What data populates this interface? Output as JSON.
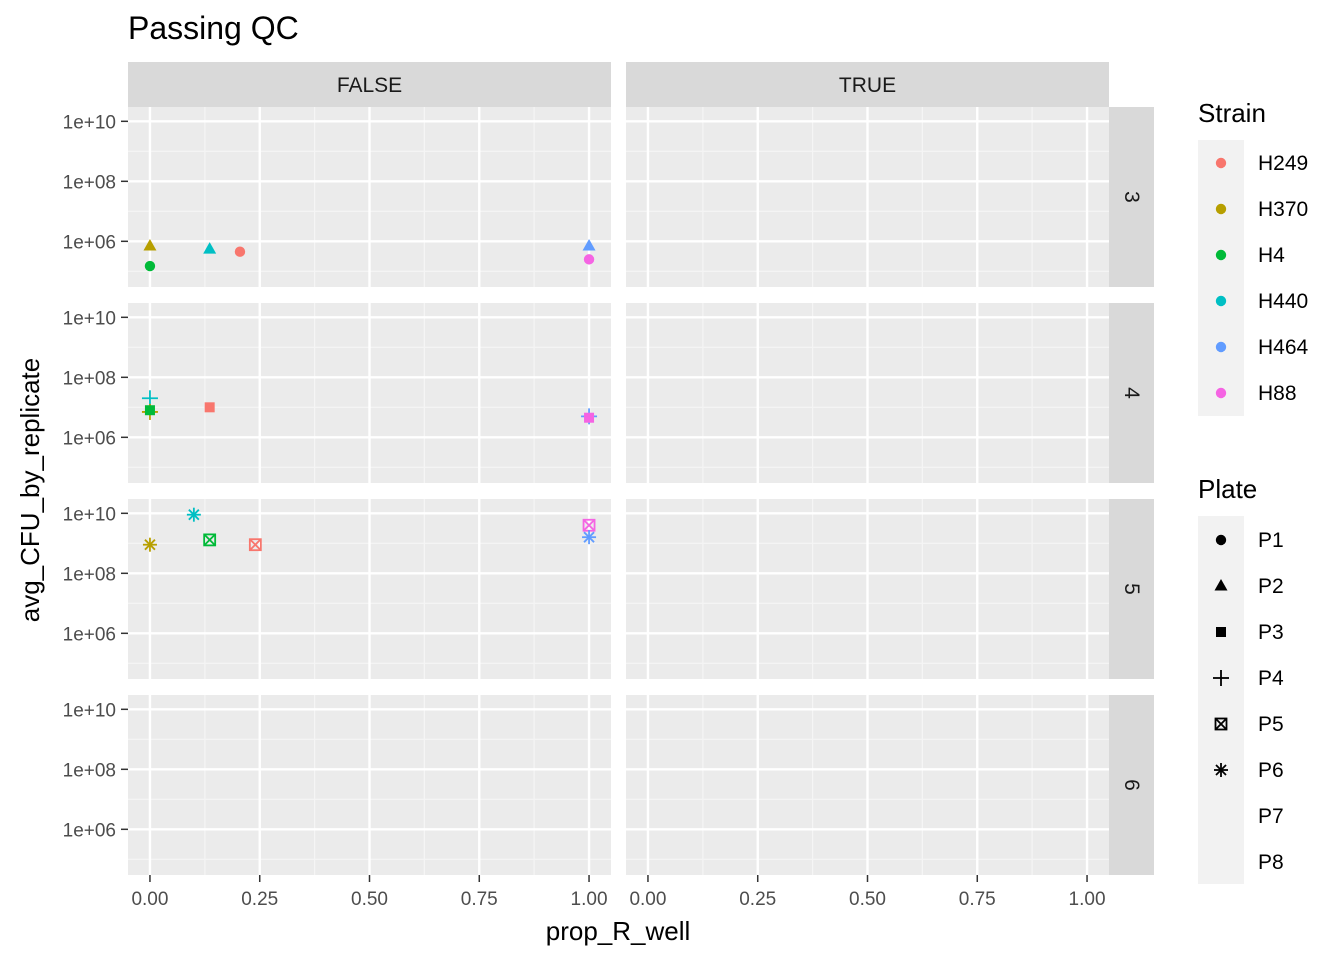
{
  "chart_data": {
    "type": "scatter",
    "title": "Passing QC",
    "xlabel": "prop_R_well",
    "ylabel": "avg_CFU_by_replicate",
    "xlim": [
      -0.05,
      1.05
    ],
    "x_ticks": [
      0,
      0.25,
      0.5,
      0.75,
      1
    ],
    "x_tick_labels": [
      "0.00",
      "0.25",
      "0.50",
      "0.75",
      "1.00"
    ],
    "y_scale": "log10",
    "ylim": [
      30000,
      30000000000
    ],
    "y_ticks": [
      1000000,
      100000000,
      10000000000
    ],
    "y_tick_labels": [
      "1e+06",
      "1e+08",
      "1e+10"
    ],
    "facet_cols": [
      "FALSE",
      "TRUE"
    ],
    "facet_rows": [
      "3",
      "4",
      "5",
      "6"
    ],
    "grid": true,
    "legend_position": "right",
    "legends": {
      "strain": {
        "title": "Strain",
        "items": [
          {
            "label": "H249",
            "color": "#F8766D"
          },
          {
            "label": "H370",
            "color": "#B79F00"
          },
          {
            "label": "H4",
            "color": "#00BA38"
          },
          {
            "label": "H440",
            "color": "#00BFC4"
          },
          {
            "label": "H464",
            "color": "#619CFF"
          },
          {
            "label": "H88",
            "color": "#F564E3"
          }
        ]
      },
      "plate": {
        "title": "Plate",
        "items": [
          {
            "label": "P1",
            "shape": "circle"
          },
          {
            "label": "P2",
            "shape": "triangle"
          },
          {
            "label": "P3",
            "shape": "square"
          },
          {
            "label": "P4",
            "shape": "plus"
          },
          {
            "label": "P5",
            "shape": "boxcross"
          },
          {
            "label": "P6",
            "shape": "asterisk"
          },
          {
            "label": "P7",
            "shape": "none"
          },
          {
            "label": "P8",
            "shape": "none"
          }
        ]
      }
    },
    "points": [
      {
        "row": "3",
        "col": "FALSE",
        "x": 0.0,
        "y": 700000,
        "strain": "H370",
        "plate": "P2"
      },
      {
        "row": "3",
        "col": "FALSE",
        "x": 0.0,
        "y": 150000,
        "strain": "H4",
        "plate": "P1"
      },
      {
        "row": "3",
        "col": "FALSE",
        "x": 0.136,
        "y": 550000,
        "strain": "H440",
        "plate": "P2"
      },
      {
        "row": "3",
        "col": "FALSE",
        "x": 0.205,
        "y": 450000,
        "strain": "H249",
        "plate": "P1"
      },
      {
        "row": "3",
        "col": "FALSE",
        "x": 1.0,
        "y": 700000,
        "strain": "H464",
        "plate": "P2"
      },
      {
        "row": "3",
        "col": "FALSE",
        "x": 1.0,
        "y": 250000,
        "strain": "H88",
        "plate": "P1"
      },
      {
        "row": "4",
        "col": "FALSE",
        "x": 0.0,
        "y": 20000000,
        "strain": "H440",
        "plate": "P4"
      },
      {
        "row": "4",
        "col": "FALSE",
        "x": 0.0,
        "y": 7000000,
        "strain": "H370",
        "plate": "P4"
      },
      {
        "row": "4",
        "col": "FALSE",
        "x": 0.0,
        "y": 8000000,
        "strain": "H4",
        "plate": "P3"
      },
      {
        "row": "4",
        "col": "FALSE",
        "x": 0.136,
        "y": 10000000,
        "strain": "H249",
        "plate": "P3"
      },
      {
        "row": "4",
        "col": "FALSE",
        "x": 1.0,
        "y": 5000000,
        "strain": "H464",
        "plate": "P4"
      },
      {
        "row": "4",
        "col": "FALSE",
        "x": 1.0,
        "y": 4500000,
        "strain": "H88",
        "plate": "P3"
      },
      {
        "row": "5",
        "col": "FALSE",
        "x": 0.0,
        "y": 900000000,
        "strain": "H370",
        "plate": "P6"
      },
      {
        "row": "5",
        "col": "FALSE",
        "x": 0.1,
        "y": 9000000000,
        "strain": "H440",
        "plate": "P6"
      },
      {
        "row": "5",
        "col": "FALSE",
        "x": 0.136,
        "y": 1300000000,
        "strain": "H4",
        "plate": "P5"
      },
      {
        "row": "5",
        "col": "FALSE",
        "x": 0.24,
        "y": 900000000,
        "strain": "H249",
        "plate": "P5"
      },
      {
        "row": "5",
        "col": "FALSE",
        "x": 1.0,
        "y": 4000000000,
        "strain": "H88",
        "plate": "P5"
      },
      {
        "row": "5",
        "col": "FALSE",
        "x": 1.0,
        "y": 1600000000,
        "strain": "H464",
        "plate": "P6"
      }
    ]
  }
}
